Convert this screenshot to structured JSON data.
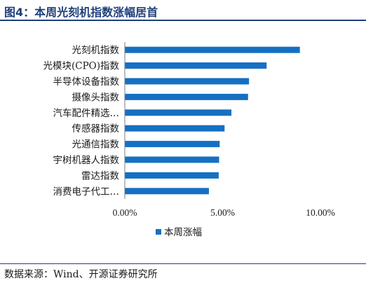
{
  "header": {
    "title": "图4：本周光刻机指数涨幅居首"
  },
  "footer": {
    "source": "数据来源：Wind、开源证券研究所"
  },
  "chart_data": {
    "type": "bar",
    "orientation": "horizontal",
    "categories": [
      "光刻机指数",
      "光模块(CPO)指数",
      "半导体设备指数",
      "摄像头指数",
      "汽车配件精选…",
      "传感器指数",
      "光通信指数",
      "宇树机器人指数",
      "雷达指数",
      "消费电子代工…"
    ],
    "series": [
      {
        "name": "本周涨幅",
        "values": [
          8.95,
          7.25,
          6.35,
          6.3,
          5.45,
          5.1,
          4.85,
          4.82,
          4.8,
          4.3
        ],
        "color": "#1570c2"
      }
    ],
    "x_ticks": [
      0,
      5,
      10
    ],
    "x_tick_labels": [
      "0.00%",
      "5.00%",
      "10.00%"
    ],
    "xlim": [
      0,
      10
    ],
    "grid": false,
    "legend": "bottom"
  }
}
